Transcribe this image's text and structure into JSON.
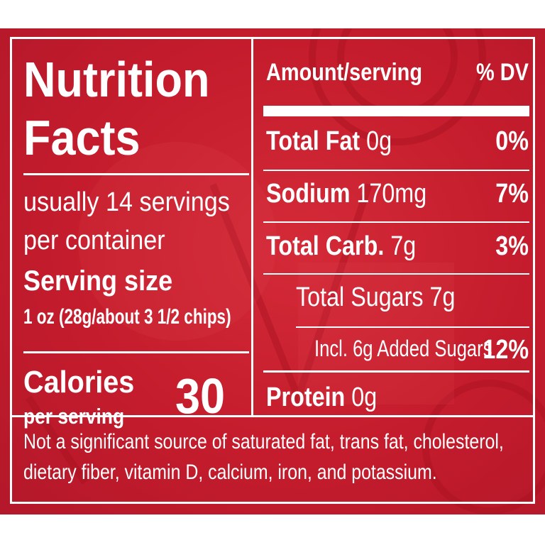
{
  "label": {
    "title_line1": "Nutrition",
    "title_line2": "Facts",
    "servings_line1": "usually 14 servings",
    "servings_line2": "per container",
    "serving_size_label": "Serving size",
    "serving_size_value": "1 oz (28g/about 3 1/2 chips)",
    "calories_label": "Calories",
    "calories_sub": "per serving",
    "calories_value": "30",
    "header_amount": "Amount/serving",
    "header_dv": "% DV",
    "rows": [
      {
        "name": "Total Fat",
        "amount": "0g",
        "dv": "0%"
      },
      {
        "name": "Sodium",
        "amount": "170mg",
        "dv": "7%"
      },
      {
        "name": "Total Carb.",
        "amount": "7g",
        "dv": "3%"
      },
      {
        "name": "Total Sugars 7g",
        "amount": "",
        "dv": ""
      },
      {
        "name": "Incl. 6g Added Sugars",
        "amount": "",
        "dv": "12%"
      },
      {
        "name": "Protein",
        "amount": "0g",
        "dv": ""
      }
    ],
    "footnote_line1": "Not a significant source of saturated fat, trans fat, cholesterol,",
    "footnote_line2": "dietary fiber, vitamin D, calcium, iron, and potassium."
  },
  "colors": {
    "background": "#c41c2c",
    "text": "#ffffff"
  }
}
